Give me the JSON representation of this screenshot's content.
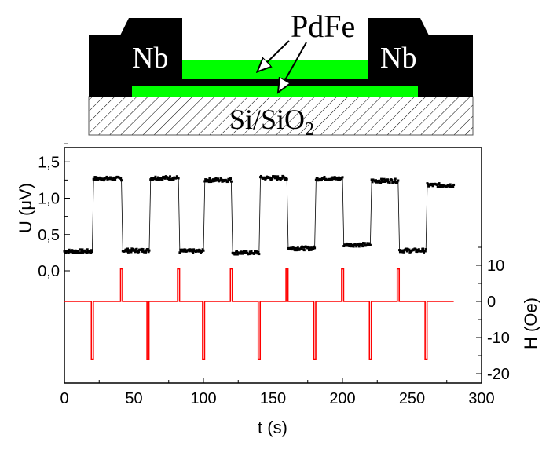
{
  "diagram": {
    "layer_label": "PdFe",
    "left_electrode": "Nb",
    "right_electrode": "Nb",
    "substrate": "Si/SiO",
    "substrate_subscript": "2",
    "colors": {
      "electrode": "#000000",
      "layer": "#00ff00"
    }
  },
  "chart_data": {
    "type": "line",
    "xlabel": "t (s)",
    "xlim": [
      0,
      300
    ],
    "xticks": [
      "0",
      "50",
      "100",
      "150",
      "200",
      "250",
      "300"
    ],
    "xtick_values": [
      0,
      50,
      100,
      150,
      200,
      250,
      300
    ],
    "series": [
      {
        "name": "U",
        "axis": "left",
        "ylabel": "U (μV)",
        "yticks": [
          "0,0",
          "0,5",
          "1,0",
          "1,5"
        ],
        "ytick_values": [
          0,
          0.5,
          1.0,
          1.5
        ],
        "color": "#000000",
        "segments": [
          {
            "t0": 0,
            "t1": 20,
            "level": 0.27
          },
          {
            "t0": 21,
            "t1": 41,
            "level": 1.27
          },
          {
            "t0": 42,
            "t1": 61,
            "level": 0.28
          },
          {
            "t0": 62,
            "t1": 82,
            "level": 1.28
          },
          {
            "t0": 83,
            "t1": 100,
            "level": 0.27
          },
          {
            "t0": 101,
            "t1": 120,
            "level": 1.25
          },
          {
            "t0": 121,
            "t1": 140,
            "level": 0.25
          },
          {
            "t0": 141,
            "t1": 160,
            "level": 1.28
          },
          {
            "t0": 161,
            "t1": 180,
            "level": 0.31
          },
          {
            "t0": 181,
            "t1": 200,
            "level": 1.27
          },
          {
            "t0": 201,
            "t1": 220,
            "level": 0.36
          },
          {
            "t0": 221,
            "t1": 240,
            "level": 1.24
          },
          {
            "t0": 241,
            "t1": 260,
            "level": 0.28
          },
          {
            "t0": 261,
            "t1": 280,
            "level": 1.18
          }
        ]
      },
      {
        "name": "H",
        "axis": "right",
        "ylabel": "H (Oe)",
        "yticks": [
          "-20",
          "-10",
          "0",
          "10"
        ],
        "ytick_values": [
          -20,
          -10,
          0,
          10
        ],
        "color": "#ff0000",
        "baseline": 0,
        "end_t": 280,
        "negative_pulses": {
          "t": [
            20,
            60,
            100,
            140,
            180,
            220,
            260
          ],
          "value": -16
        },
        "positive_pulses": {
          "t": [
            41,
            82,
            120,
            160,
            200,
            240
          ],
          "value": 9
        }
      }
    ]
  }
}
